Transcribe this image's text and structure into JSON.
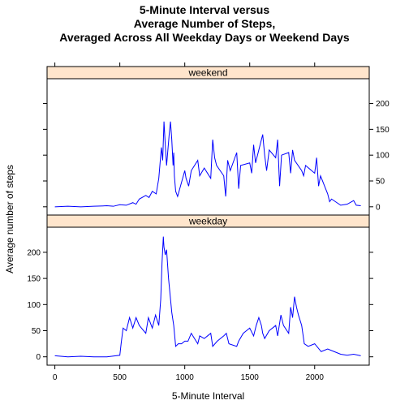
{
  "chart_data": {
    "type": "line",
    "title_lines": [
      "5-Minute Interval versus",
      "Average Number of Steps,",
      "Averaged Across All Weekday Days or Weekend Days"
    ],
    "xlabel": "5-Minute Interval",
    "ylabel": "Average number of steps",
    "xlim": [
      -60,
      2420
    ],
    "ylim": [
      -16,
      248
    ],
    "x_ticks": [
      0,
      500,
      1000,
      1500,
      2000
    ],
    "y_ticks": [
      0,
      50,
      100,
      150,
      200
    ],
    "line_color": "#0000ff",
    "strip_color": "#ffe5cc",
    "panels": [
      {
        "strip": "weekend",
        "y_axis_side": "right",
        "points": [
          [
            0,
            0
          ],
          [
            100,
            1
          ],
          [
            200,
            0
          ],
          [
            300,
            1
          ],
          [
            400,
            2
          ],
          [
            450,
            1
          ],
          [
            500,
            4
          ],
          [
            550,
            3
          ],
          [
            600,
            8
          ],
          [
            625,
            5
          ],
          [
            650,
            15
          ],
          [
            700,
            22
          ],
          [
            725,
            18
          ],
          [
            750,
            30
          ],
          [
            780,
            25
          ],
          [
            800,
            55
          ],
          [
            810,
            85
          ],
          [
            820,
            115
          ],
          [
            830,
            90
          ],
          [
            840,
            165
          ],
          [
            850,
            120
          ],
          [
            860,
            80
          ],
          [
            870,
            110
          ],
          [
            880,
            140
          ],
          [
            890,
            165
          ],
          [
            900,
            130
          ],
          [
            910,
            80
          ],
          [
            915,
            105
          ],
          [
            920,
            60
          ],
          [
            930,
            30
          ],
          [
            945,
            20
          ],
          [
            1000,
            70
          ],
          [
            1010,
            55
          ],
          [
            1030,
            40
          ],
          [
            1050,
            70
          ],
          [
            1100,
            90
          ],
          [
            1115,
            60
          ],
          [
            1150,
            75
          ],
          [
            1200,
            55
          ],
          [
            1215,
            130
          ],
          [
            1230,
            95
          ],
          [
            1245,
            80
          ],
          [
            1300,
            60
          ],
          [
            1315,
            20
          ],
          [
            1330,
            90
          ],
          [
            1350,
            70
          ],
          [
            1400,
            105
          ],
          [
            1415,
            35
          ],
          [
            1430,
            80
          ],
          [
            1500,
            85
          ],
          [
            1515,
            65
          ],
          [
            1530,
            120
          ],
          [
            1545,
            85
          ],
          [
            1600,
            140
          ],
          [
            1615,
            100
          ],
          [
            1630,
            70
          ],
          [
            1650,
            110
          ],
          [
            1700,
            95
          ],
          [
            1715,
            130
          ],
          [
            1730,
            40
          ],
          [
            1745,
            100
          ],
          [
            1800,
            105
          ],
          [
            1815,
            65
          ],
          [
            1830,
            110
          ],
          [
            1845,
            90
          ],
          [
            1900,
            70
          ],
          [
            1915,
            60
          ],
          [
            1930,
            80
          ],
          [
            2000,
            65
          ],
          [
            2015,
            95
          ],
          [
            2030,
            40
          ],
          [
            2045,
            60
          ],
          [
            2100,
            25
          ],
          [
            2115,
            10
          ],
          [
            2130,
            15
          ],
          [
            2200,
            3
          ],
          [
            2250,
            5
          ],
          [
            2300,
            12
          ],
          [
            2320,
            3
          ],
          [
            2355,
            2
          ]
        ]
      },
      {
        "strip": "weekday",
        "y_axis_side": "left",
        "points": [
          [
            0,
            2
          ],
          [
            100,
            0
          ],
          [
            200,
            1
          ],
          [
            300,
            0
          ],
          [
            400,
            0
          ],
          [
            500,
            3
          ],
          [
            510,
            25
          ],
          [
            525,
            55
          ],
          [
            550,
            50
          ],
          [
            575,
            75
          ],
          [
            600,
            55
          ],
          [
            625,
            75
          ],
          [
            650,
            60
          ],
          [
            700,
            45
          ],
          [
            720,
            75
          ],
          [
            750,
            55
          ],
          [
            775,
            80
          ],
          [
            800,
            60
          ],
          [
            815,
            110
          ],
          [
            825,
            180
          ],
          [
            835,
            230
          ],
          [
            840,
            210
          ],
          [
            850,
            195
          ],
          [
            860,
            205
          ],
          [
            875,
            150
          ],
          [
            900,
            85
          ],
          [
            915,
            60
          ],
          [
            930,
            20
          ],
          [
            950,
            25
          ],
          [
            975,
            25
          ],
          [
            1000,
            30
          ],
          [
            1025,
            30
          ],
          [
            1050,
            45
          ],
          [
            1100,
            25
          ],
          [
            1115,
            40
          ],
          [
            1150,
            35
          ],
          [
            1200,
            45
          ],
          [
            1215,
            20
          ],
          [
            1250,
            30
          ],
          [
            1300,
            40
          ],
          [
            1320,
            45
          ],
          [
            1340,
            25
          ],
          [
            1400,
            20
          ],
          [
            1415,
            30
          ],
          [
            1450,
            45
          ],
          [
            1500,
            55
          ],
          [
            1530,
            40
          ],
          [
            1550,
            60
          ],
          [
            1570,
            75
          ],
          [
            1590,
            60
          ],
          [
            1600,
            45
          ],
          [
            1615,
            35
          ],
          [
            1650,
            50
          ],
          [
            1700,
            60
          ],
          [
            1715,
            40
          ],
          [
            1740,
            80
          ],
          [
            1760,
            60
          ],
          [
            1800,
            45
          ],
          [
            1815,
            95
          ],
          [
            1830,
            75
          ],
          [
            1845,
            115
          ],
          [
            1860,
            95
          ],
          [
            1875,
            80
          ],
          [
            1900,
            60
          ],
          [
            1920,
            25
          ],
          [
            1950,
            20
          ],
          [
            2000,
            25
          ],
          [
            2050,
            10
          ],
          [
            2100,
            15
          ],
          [
            2150,
            10
          ],
          [
            2200,
            5
          ],
          [
            2250,
            3
          ],
          [
            2300,
            5
          ],
          [
            2355,
            2
          ]
        ]
      }
    ]
  }
}
